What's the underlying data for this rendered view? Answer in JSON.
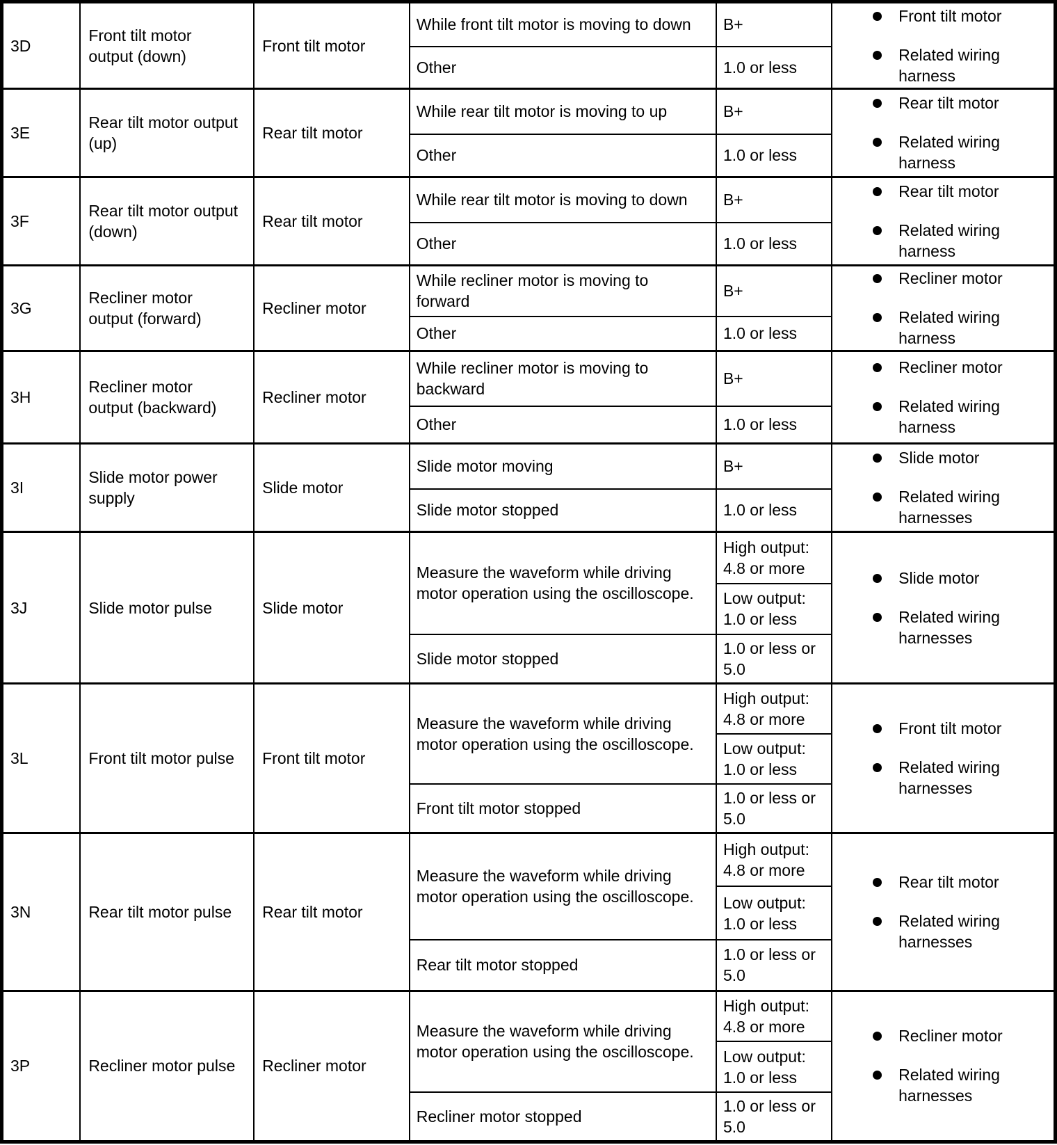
{
  "colors": {
    "ink": "#000000",
    "paper": "#ffffff"
  },
  "table": {
    "rows": [
      {
        "code": "3D",
        "description": "Front tilt motor\noutput (down)",
        "component": "Front tilt motor",
        "conditions": [
          {
            "text": "While front tilt motor is moving to down",
            "values": [
              "B+"
            ]
          },
          {
            "text": "Other",
            "values": [
              "1.0 or less"
            ]
          }
        ],
        "related": [
          "Front tilt motor",
          "Related wiring\nharness"
        ]
      },
      {
        "code": "3E",
        "description": "Rear tilt motor output\n(up)",
        "component": "Rear tilt motor",
        "conditions": [
          {
            "text": "While rear tilt motor is moving to up",
            "values": [
              "B+"
            ]
          },
          {
            "text": "Other",
            "values": [
              "1.0 or less"
            ]
          }
        ],
        "related": [
          "Rear tilt motor",
          "Related wiring\nharness"
        ]
      },
      {
        "code": "3F",
        "description": "Rear tilt motor output\n(down)",
        "component": "Rear tilt motor",
        "conditions": [
          {
            "text": "While rear tilt motor is moving to down",
            "values": [
              "B+"
            ]
          },
          {
            "text": "Other",
            "values": [
              "1.0 or less"
            ]
          }
        ],
        "related": [
          "Rear tilt motor",
          "Related wiring\nharness"
        ]
      },
      {
        "code": "3G",
        "description": "Recliner motor\noutput (forward)",
        "component": "Recliner motor",
        "conditions": [
          {
            "text": "While recliner motor is moving to\nforward",
            "values": [
              "B+"
            ]
          },
          {
            "text": "Other",
            "values": [
              "1.0 or less"
            ]
          }
        ],
        "related": [
          "Recliner motor",
          "Related wiring\nharness"
        ]
      },
      {
        "code": "3H",
        "description": "Recliner motor\noutput (backward)",
        "component": "Recliner motor",
        "conditions": [
          {
            "text": "While recliner motor is moving to\nbackward",
            "values": [
              "B+"
            ]
          },
          {
            "text": "Other",
            "values": [
              "1.0 or less"
            ]
          }
        ],
        "related": [
          "Recliner motor",
          "Related wiring\nharness"
        ]
      },
      {
        "code": "3I",
        "description": "Slide motor power\nsupply",
        "component": "Slide motor",
        "conditions": [
          {
            "text": "Slide motor moving",
            "values": [
              "B+"
            ]
          },
          {
            "text": "Slide motor stopped",
            "values": [
              "1.0 or less"
            ]
          }
        ],
        "related": [
          "Slide motor",
          "Related wiring\nharnesses"
        ]
      },
      {
        "code": "3J",
        "description": "Slide motor pulse",
        "component": "Slide motor",
        "conditions": [
          {
            "text": "Measure the waveform while driving\nmotor operation using the oscilloscope.",
            "values": [
              "High output:\n4.8 or more",
              "Low output:\n1.0 or less"
            ]
          },
          {
            "text": "Slide motor stopped",
            "values": [
              "1.0 or less or\n5.0"
            ]
          }
        ],
        "related": [
          "Slide motor",
          "Related wiring\nharnesses"
        ]
      },
      {
        "code": "3L",
        "description": "Front tilt motor pulse",
        "component": "Front tilt motor",
        "conditions": [
          {
            "text": "Measure the waveform while driving\nmotor operation using the oscilloscope.",
            "values": [
              "High output:\n4.8 or more",
              "Low output:\n1.0 or less"
            ]
          },
          {
            "text": "Front tilt motor stopped",
            "values": [
              "1.0 or less or\n5.0"
            ]
          }
        ],
        "related": [
          "Front tilt motor",
          "Related wiring\nharnesses"
        ]
      },
      {
        "code": "3N",
        "description": "Rear tilt motor pulse",
        "component": "Rear tilt motor",
        "conditions": [
          {
            "text": "Measure the waveform while driving\nmotor operation using the oscilloscope.",
            "values": [
              "High output:\n4.8 or more",
              "Low output:\n1.0 or less"
            ]
          },
          {
            "text": "Rear tilt motor stopped",
            "values": [
              "1.0 or less or\n5.0"
            ]
          }
        ],
        "related": [
          "Rear tilt motor",
          "Related wiring\nharnesses"
        ]
      },
      {
        "code": "3P",
        "description": "Recliner motor pulse",
        "component": "Recliner motor",
        "conditions": [
          {
            "text": "Measure the waveform while driving\nmotor operation using the oscilloscope.",
            "values": [
              "High output:\n4.8 or more",
              "Low output:\n1.0 or less"
            ]
          },
          {
            "text": "Recliner motor stopped",
            "values": [
              "1.0 or less or\n5.0"
            ]
          }
        ],
        "related": [
          "Recliner motor",
          "Related wiring\nharnesses"
        ]
      }
    ]
  }
}
